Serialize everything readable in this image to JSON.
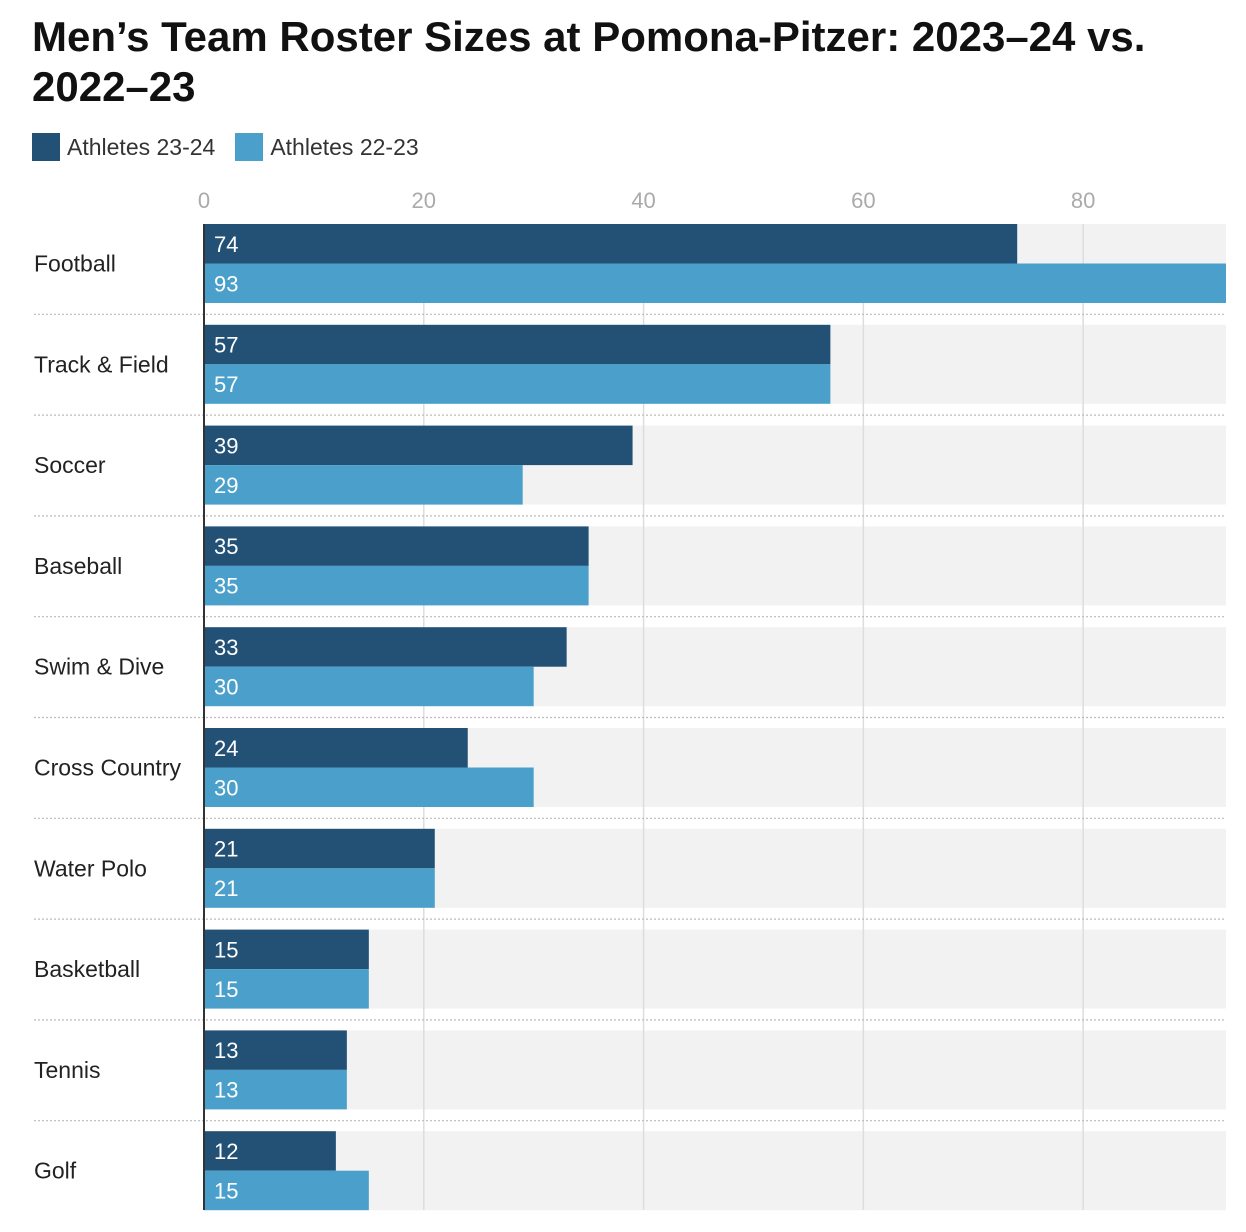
{
  "chart_data": {
    "type": "bar",
    "orientation": "horizontal",
    "title": "Men’s Team Roster Sizes at Pomona-Pitzer: 2023–24 vs. 2022–23",
    "legend_position": "top-left",
    "grid": true,
    "xlim": [
      0,
      93
    ],
    "x_ticks": [
      0,
      20,
      40,
      60,
      80
    ],
    "categories": [
      "Football",
      "Track & Field",
      "Soccer",
      "Baseball",
      "Swim & Dive",
      "Cross Country",
      "Water Polo",
      "Basketball",
      "Tennis",
      "Golf"
    ],
    "series": [
      {
        "name": "Athletes 23-24",
        "color": "#235176",
        "values": [
          74,
          57,
          39,
          35,
          33,
          24,
          21,
          15,
          13,
          12
        ]
      },
      {
        "name": "Athletes 22-23",
        "color": "#4ba0cb",
        "values": [
          93,
          57,
          29,
          35,
          30,
          30,
          21,
          15,
          13,
          15
        ]
      }
    ],
    "row_background_color": "#f2f2f2",
    "gridline_color": "#dddddd",
    "separator_color": "#bbbbbb"
  }
}
